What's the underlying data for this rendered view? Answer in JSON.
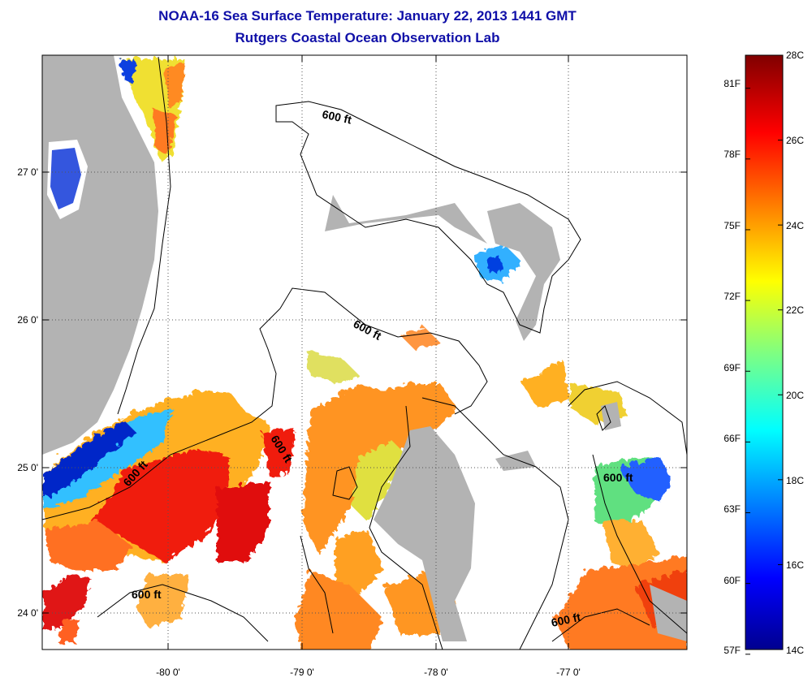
{
  "title": {
    "line1": "NOAA-16 Sea Surface Temperature:  January 22, 2013 1441 GMT",
    "line2": "Rutgers Coastal Ocean Observation Lab"
  },
  "map": {
    "lon_labels": [
      "-80 0'",
      "-79 0'",
      "-78 0'",
      "-77 0'"
    ],
    "lat_labels": [
      "27 0'",
      "26 0'",
      "25 0'",
      "24 0'"
    ],
    "contour_labels": [
      "600 ft",
      "600 ft",
      "600 ft",
      "600 ft",
      "600 ft",
      "600 ft"
    ],
    "colors": {
      "land": "#b3b3b3",
      "cloud": "#ffffff"
    }
  },
  "colorbar": {
    "fahrenheit": [
      "81F",
      "78F",
      "75F",
      "72F",
      "69F",
      "66F",
      "63F",
      "60F",
      "57F"
    ],
    "celsius": [
      "28C",
      "26C",
      "24C",
      "22C",
      "20C",
      "18C",
      "16C",
      "14C"
    ],
    "min_c": 14,
    "max_c": 28
  }
}
